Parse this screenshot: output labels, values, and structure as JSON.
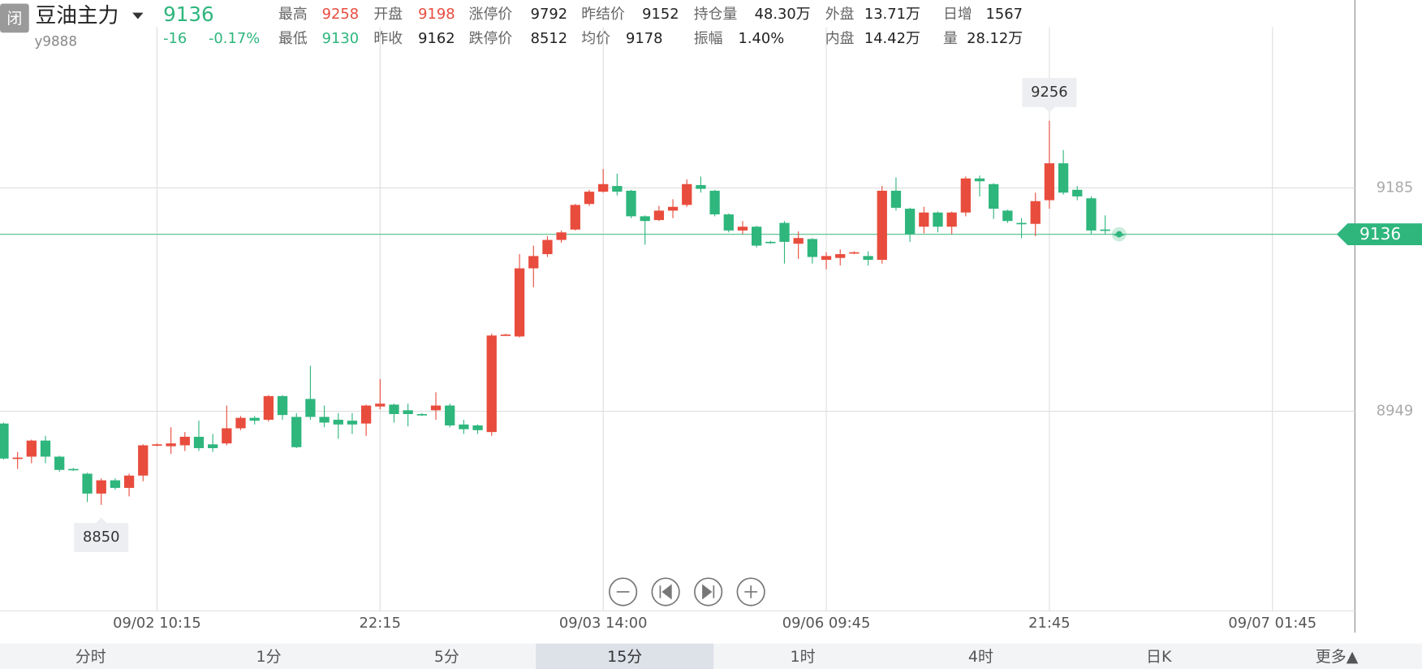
{
  "header": {
    "badge": "闭",
    "title": "豆油主力",
    "code": "y9888",
    "price": "9136",
    "change": "-16",
    "change_pct": "-0.17%",
    "price_color": "#2eb67d",
    "stats": [
      [
        {
          "label": "最高",
          "value": "9258",
          "color": "#e84c3d"
        },
        {
          "label": "开盘",
          "value": "9198",
          "color": "#e84c3d"
        },
        {
          "label": "涨停价",
          "value": "9792",
          "color": "#222222"
        },
        {
          "label": "昨结价",
          "value": "9152",
          "color": "#222222"
        },
        {
          "label": "持仓量",
          "value": "48.30万",
          "color": "#222222"
        },
        {
          "label": "外盘",
          "value": "13.71万",
          "color": "#222222"
        },
        {
          "label": "日增",
          "value": "1567",
          "color": "#222222"
        }
      ],
      [
        {
          "label": "最低",
          "value": "9130",
          "color": "#2eb67d"
        },
        {
          "label": "昨收",
          "value": "9162",
          "color": "#222222"
        },
        {
          "label": "跌停价",
          "value": "8512",
          "color": "#222222"
        },
        {
          "label": "均价",
          "value": "9178",
          "color": "#222222"
        },
        {
          "label": "振幅",
          "value": "1.40%",
          "color": "#222222"
        },
        {
          "label": "内盘",
          "value": "14.42万",
          "color": "#222222"
        },
        {
          "label": "量",
          "value": "28.12万",
          "color": "#222222"
        }
      ]
    ]
  },
  "tabs": {
    "items": [
      "分时",
      "1分",
      "5分",
      "15分",
      "1时",
      "4时",
      "日K",
      "更多▲"
    ],
    "selected": 3
  },
  "chart_data": {
    "type": "candlestick",
    "up_color": "#e84c3d",
    "down_color": "#2eb67d",
    "grid": true,
    "ylim": [
      8738,
      9326
    ],
    "yticks": [
      9185,
      8949
    ],
    "last_price": 9136,
    "annotations": [
      9256,
      8850
    ],
    "categories": [
      null,
      null,
      null,
      null,
      null,
      null,
      null,
      null,
      null,
      null,
      null,
      "09/02 10:15",
      null,
      null,
      null,
      null,
      null,
      null,
      null,
      null,
      null,
      null,
      null,
      null,
      null,
      null,
      null,
      "22:15",
      null,
      null,
      null,
      null,
      null,
      null,
      null,
      null,
      null,
      null,
      null,
      null,
      null,
      null,
      null,
      "09/03 14:00",
      null,
      null,
      null,
      null,
      null,
      null,
      null,
      null,
      null,
      null,
      null,
      null,
      null,
      null,
      null,
      "09/06 09:45",
      null,
      null,
      null,
      null,
      null,
      null,
      null,
      null,
      null,
      null,
      null,
      null,
      null,
      null,
      null,
      "21:45",
      null,
      null,
      null,
      null,
      null,
      null,
      null,
      null,
      null,
      null,
      null,
      null,
      null,
      null,
      null,
      "09/07 01:45"
    ],
    "open": [
      8936,
      8899,
      8901,
      8918,
      8901,
      8888,
      8883,
      8862,
      8876,
      8868,
      8881,
      8913,
      8912,
      8913,
      8922,
      8914,
      8915,
      8931,
      8942,
      8940,
      8965,
      8943,
      8962,
      8943,
      8940,
      8939,
      8936,
      8954,
      8956,
      8950,
      8946,
      8950,
      8955,
      8935,
      8934,
      8927,
      9029,
      9028,
      9100,
      9115,
      9130,
      9141,
      9168,
      9181,
      9187,
      9182,
      9155,
      9151,
      9161,
      9167,
      9188,
      9182,
      9157,
      9140,
      9144,
      9128,
      9148,
      9126,
      9131,
      9109,
      9111,
      9116,
      9113,
      9109,
      9182,
      9163,
      9144,
      9159,
      9144,
      9159,
      9195,
      9189,
      9161,
      9148,
      9147,
      9172,
      9211,
      9183,
      9174,
      9141,
      9136,
      null,
      null,
      null,
      null,
      null,
      null,
      null,
      null,
      null,
      null,
      null
    ],
    "high": [
      8937,
      8906,
      8919,
      8923,
      8902,
      8889,
      8884,
      8878,
      8878,
      8883,
      8914,
      8915,
      8932,
      8927,
      8939,
      8925,
      8955,
      8944,
      8944,
      8966,
      8966,
      8947,
      8997,
      8955,
      8947,
      8947,
      8956,
      8983,
      8957,
      8957,
      8947,
      8969,
      8957,
      8940,
      8935,
      9031,
      9031,
      9115,
      9124,
      9134,
      9140,
      9168,
      9183,
      9205,
      9200,
      9183,
      9156,
      9166,
      9173,
      9194,
      9197,
      9183,
      9158,
      9150,
      9145,
      9129,
      9150,
      9139,
      9132,
      9117,
      9120,
      9118,
      9118,
      9187,
      9196,
      9164,
      9165,
      9160,
      9160,
      9197,
      9198,
      9190,
      9162,
      9153,
      9180,
      9256,
      9225,
      9187,
      9176,
      9156,
      9137,
      null,
      null,
      null,
      null,
      null,
      null,
      null,
      null,
      null,
      null,
      null
    ],
    "low": [
      8898,
      8888,
      8894,
      8894,
      8885,
      8886,
      8853,
      8850,
      8866,
      8859,
      8875,
      8912,
      8904,
      8907,
      8907,
      8906,
      8913,
      8929,
      8935,
      8938,
      8940,
      8910,
      8940,
      8932,
      8920,
      8925,
      8923,
      8951,
      8937,
      8933,
      8944,
      8940,
      8932,
      8925,
      8925,
      8923,
      9029,
      9027,
      9080,
      9112,
      9127,
      9140,
      9166,
      9180,
      9177,
      9153,
      9125,
      9150,
      9153,
      9165,
      9180,
      9155,
      9138,
      9136,
      9122,
      9126,
      9105,
      9110,
      9105,
      9099,
      9103,
      9115,
      9103,
      9105,
      9161,
      9128,
      9137,
      9138,
      9136,
      9155,
      9176,
      9152,
      9148,
      9132,
      9134,
      9163,
      9178,
      9172,
      9136,
      9136,
      9135,
      null,
      null,
      null,
      null,
      null,
      null,
      null,
      null,
      null,
      null,
      null
    ],
    "close": [
      8899,
      8900,
      8918,
      8901,
      8887,
      8887,
      8862,
      8876,
      8868,
      8881,
      8913,
      8914,
      8915,
      8922,
      8910,
      8910,
      8931,
      8942,
      8939,
      8965,
      8945,
      8911,
      8943,
      8937,
      8935,
      8935,
      8955,
      8957,
      8946,
      8946,
      8945,
      8955,
      8934,
      8930,
      8929,
      9029,
      9030,
      9100,
      9113,
      9130,
      9138,
      9167,
      9181,
      9189,
      9181,
      9155,
      9150,
      9161,
      9165,
      9189,
      9184,
      9157,
      9140,
      9144,
      9124,
      9127,
      9128,
      9132,
      9112,
      9113,
      9115,
      9117,
      9109,
      9182,
      9164,
      9136,
      9159,
      9144,
      9159,
      9195,
      9192,
      9163,
      9150,
      9147,
      9171,
      9211,
      9180,
      9176,
      9140,
      9140,
      9136,
      null,
      null,
      null,
      null,
      null,
      null,
      null,
      null,
      null,
      null,
      null
    ]
  }
}
